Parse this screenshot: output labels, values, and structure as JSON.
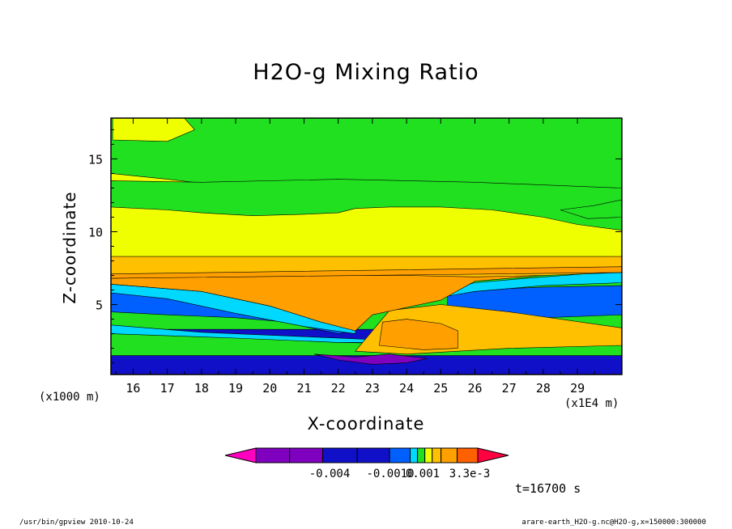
{
  "chart_data": {
    "type": "heatmap",
    "title": "H2O-g Mixing Ratio",
    "xlabel": "X-coordinate",
    "ylabel": "Z-coordinate",
    "x_unit": "(x1E4 m)",
    "y_unit": "(x1000 m)",
    "xlim": [
      15.35,
      30.3
    ],
    "ylim": [
      0.2,
      17.8
    ],
    "x_ticks": [
      "16",
      "17",
      "18",
      "19",
      "20",
      "21",
      "22",
      "23",
      "24",
      "25",
      "26",
      "27",
      "28",
      "29"
    ],
    "y_ticks": [
      "5",
      "10",
      "15"
    ],
    "grid": false,
    "layers": [
      {
        "color": "#1010c8",
        "z": [
          [
            15.35,
            3.3
          ],
          [
            30.3,
            3.3
          ],
          [
            30.3,
            0.2
          ],
          [
            15.35,
            0.2
          ]
        ]
      },
      {
        "color": "#00d8ff",
        "z": [
          [
            15.35,
            3.6
          ],
          [
            18,
            3.1
          ],
          [
            21,
            2.8
          ],
          [
            24,
            2.5
          ],
          [
            27,
            3.0
          ],
          [
            30.3,
            3.2
          ],
          [
            30.3,
            2.4
          ],
          [
            15.35,
            2.4
          ]
        ]
      },
      {
        "color": "#20e020",
        "z": [
          [
            15.35,
            3.0
          ],
          [
            19,
            2.7
          ],
          [
            22,
            2.4
          ],
          [
            25,
            2.3
          ],
          [
            28,
            2.5
          ],
          [
            30.3,
            2.6
          ],
          [
            30.3,
            1.5
          ],
          [
            15.35,
            1.5
          ]
        ]
      },
      {
        "color": "#0060ff",
        "z": [
          [
            15.35,
            6.0
          ],
          [
            17,
            5.5
          ],
          [
            19,
            4.5
          ],
          [
            21,
            3.5
          ],
          [
            22,
            3.0
          ],
          [
            22.5,
            3.2
          ],
          [
            21,
            3.7
          ],
          [
            19,
            4.1
          ],
          [
            17,
            4.3
          ],
          [
            15.35,
            4.5
          ]
        ]
      },
      {
        "color": "#0060ff",
        "z": [
          [
            25.2,
            5.6
          ],
          [
            26,
            5.9
          ],
          [
            27,
            6.1
          ],
          [
            28,
            6.2
          ],
          [
            30.3,
            6.3
          ],
          [
            30.3,
            4.3
          ],
          [
            28,
            4.1
          ],
          [
            26,
            4.1
          ],
          [
            25.2,
            4.6
          ]
        ]
      },
      {
        "color": "#00d8ff",
        "z": [
          [
            15.35,
            6.4
          ],
          [
            18,
            5.9
          ],
          [
            20,
            4.9
          ],
          [
            21.5,
            3.8
          ],
          [
            22.5,
            3.3
          ],
          [
            22.5,
            3.0
          ],
          [
            21,
            3.5
          ],
          [
            19,
            4.4
          ],
          [
            17,
            5.4
          ],
          [
            15.35,
            5.8
          ]
        ]
      },
      {
        "color": "#00d8ff",
        "z": [
          [
            24.8,
            5.7
          ],
          [
            26,
            6.5
          ],
          [
            27.5,
            6.8
          ],
          [
            30.3,
            7.3
          ],
          [
            30.3,
            6.5
          ],
          [
            28,
            6.3
          ],
          [
            26,
            5.9
          ],
          [
            25,
            5.5
          ]
        ]
      },
      {
        "color": "#ffc000",
        "z": [
          [
            23.5,
            4.6
          ],
          [
            25,
            5.0
          ],
          [
            27,
            4.5
          ],
          [
            30.3,
            3.4
          ],
          [
            30.3,
            2.2
          ],
          [
            27,
            2.0
          ],
          [
            24,
            1.6
          ],
          [
            22.5,
            1.8
          ]
        ]
      },
      {
        "color": "#ffa000",
        "z": [
          [
            15.35,
            6.8
          ],
          [
            17,
            7.0
          ],
          [
            20,
            7.3
          ],
          [
            23,
            7.5
          ],
          [
            26,
            7.5
          ],
          [
            28,
            7.6
          ],
          [
            30.3,
            7.8
          ],
          [
            30.3,
            7.4
          ],
          [
            28,
            7.0
          ],
          [
            26,
            6.6
          ],
          [
            25,
            5.3
          ],
          [
            24,
            4.8
          ],
          [
            23,
            4.3
          ],
          [
            22.5,
            3.2
          ],
          [
            21.5,
            3.8
          ],
          [
            20,
            4.9
          ],
          [
            18,
            5.9
          ],
          [
            15.35,
            6.4
          ]
        ]
      },
      {
        "color": "#ffa000",
        "z": [
          [
            23.3,
            3.8
          ],
          [
            24,
            4.0
          ],
          [
            25,
            3.7
          ],
          [
            25.5,
            3.2
          ],
          [
            25.5,
            2.0
          ],
          [
            24.5,
            1.9
          ],
          [
            23.2,
            2.2
          ]
        ]
      },
      {
        "color": "#f0ff00",
        "z": [
          [
            15.35,
            14.0
          ],
          [
            17,
            13.6
          ],
          [
            18.5,
            13.2
          ],
          [
            19,
            13.0
          ],
          [
            19.5,
            12.5
          ],
          [
            20.5,
            12.7
          ],
          [
            21.5,
            12.7
          ],
          [
            22,
            12.5
          ],
          [
            22.5,
            12.0
          ],
          [
            23.5,
            12.4
          ],
          [
            25,
            12.4
          ],
          [
            26.5,
            12.0
          ],
          [
            28,
            11.5
          ],
          [
            29,
            11.2
          ],
          [
            30.3,
            10.6
          ],
          [
            30.3,
            7.8
          ],
          [
            26,
            7.6
          ],
          [
            20,
            7.5
          ],
          [
            15.35,
            7.0
          ]
        ]
      },
      {
        "color": "#ffc000",
        "z": [
          [
            15.35,
            8.3
          ],
          [
            30.3,
            8.3
          ],
          [
            30.3,
            7.2
          ],
          [
            28,
            7.0
          ],
          [
            26,
            6.9
          ],
          [
            24,
            7.0
          ],
          [
            20,
            7.0
          ],
          [
            17,
            6.9
          ],
          [
            15.35,
            6.8
          ]
        ]
      },
      {
        "color": "#ffa000",
        "z": [
          [
            15.35,
            7.1
          ],
          [
            30.3,
            7.6
          ],
          [
            30.3,
            7.2
          ],
          [
            15.35,
            6.8
          ]
        ]
      },
      {
        "color": "#20e020",
        "z": [
          [
            15.35,
            11.7
          ],
          [
            17,
            11.5
          ],
          [
            18,
            11.3
          ],
          [
            19.5,
            11.1
          ],
          [
            21,
            11.2
          ],
          [
            22,
            11.3
          ],
          [
            22.5,
            11.6
          ],
          [
            23.5,
            11.7
          ],
          [
            25,
            11.7
          ],
          [
            26.5,
            11.5
          ],
          [
            28,
            11.0
          ],
          [
            29,
            10.5
          ],
          [
            30.3,
            10.1
          ],
          [
            30.3,
            13.0
          ],
          [
            26,
            13.4
          ],
          [
            22,
            13.6
          ],
          [
            18,
            13.4
          ],
          [
            15.35,
            13.5
          ]
        ]
      },
      {
        "color": "#f0ff00",
        "z": [
          [
            15.4,
            17.8
          ],
          [
            17.5,
            17.8
          ],
          [
            17.8,
            17.0
          ],
          [
            17,
            16.2
          ],
          [
            15.4,
            16.3
          ]
        ]
      },
      {
        "color": "#8000c0",
        "z": [
          [
            21.3,
            1.6
          ],
          [
            22,
            1.2
          ],
          [
            23,
            0.9
          ],
          [
            24,
            1.0
          ],
          [
            24.6,
            1.3
          ],
          [
            23.5,
            1.6
          ],
          [
            22.5,
            1.4
          ]
        ]
      },
      {
        "color": "#20e020",
        "z": [
          [
            28.5,
            11.5
          ],
          [
            29.5,
            11.8
          ],
          [
            30.3,
            12.2
          ],
          [
            30.3,
            11.0
          ],
          [
            29.3,
            10.9
          ]
        ]
      }
    ],
    "colorbar": {
      "colors": [
        "#ff00c0",
        "#8000c0",
        "#8000c0",
        "#1010c8",
        "#1010c8",
        "#0060ff",
        "#00d8ff",
        "#20e020",
        "#f0ff00",
        "#ffc000",
        "#ffa000",
        "#ff6000",
        "#ff0040"
      ],
      "labels": [
        "-0.004",
        "-0.0010",
        "0.001",
        "3.3e-3"
      ]
    }
  },
  "time_label": "t=16700 s",
  "footer": {
    "left": "/usr/bin/gpview   2010-10-24",
    "right": "arare-earth_H2O-g.nc@H2O-g,x=150000:300000"
  }
}
